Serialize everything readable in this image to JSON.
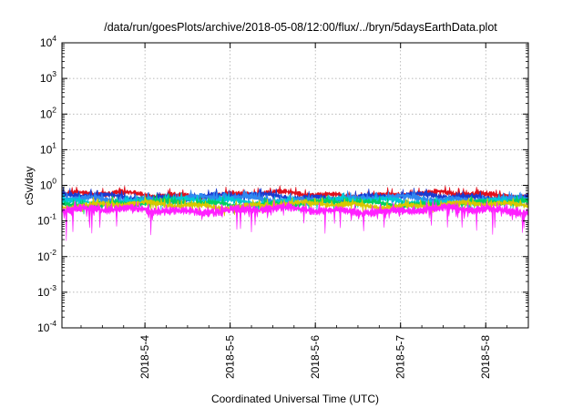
{
  "chart_data": {
    "type": "line",
    "title": "/data/run/goesPlots/archive/2018-05-08/12:00/flux/../bryn/5daysEarthData.plot",
    "xlabel": "Coordinated Universal Time (UTC)",
    "ylabel": "cSv/day",
    "yscale": "log",
    "ylim": [
      0.0001,
      10000
    ],
    "xlim": [
      "2018-05-03T00:37",
      "2018-05-08T12:00"
    ],
    "x_ticks": [
      {
        "label": "2018-5-4",
        "value": "2018-05-04T00:00"
      },
      {
        "label": "2018-5-5",
        "value": "2018-05-05T00:00"
      },
      {
        "label": "2018-5-6",
        "value": "2018-05-06T00:00"
      },
      {
        "label": "2018-5-7",
        "value": "2018-05-07T00:00"
      },
      {
        "label": "2018-5-8",
        "value": "2018-05-08T00:00"
      }
    ],
    "y_ticks": [
      {
        "base": "10",
        "exp": "4"
      },
      {
        "base": "10",
        "exp": "3"
      },
      {
        "base": "10",
        "exp": "2"
      },
      {
        "base": "10",
        "exp": "1"
      },
      {
        "base": "10",
        "exp": "0"
      },
      {
        "base": "10",
        "exp": "-1"
      },
      {
        "base": "10",
        "exp": "-2"
      },
      {
        "base": "10",
        "exp": "-3"
      },
      {
        "base": "10",
        "exp": "-4"
      }
    ],
    "grid": true,
    "legend": "none",
    "series": [
      {
        "color": "#e0101c",
        "typical": 0.55
      },
      {
        "color": "#1a3ad0",
        "typical": 0.48
      },
      {
        "color": "#3088f0",
        "typical": 0.42
      },
      {
        "color": "#00c8d8",
        "typical": 0.36
      },
      {
        "color": "#00d060",
        "typical": 0.31
      },
      {
        "color": "#d8c800",
        "typical": 0.28
      },
      {
        "color": "#ff20ff",
        "typical": 0.2
      }
    ]
  }
}
